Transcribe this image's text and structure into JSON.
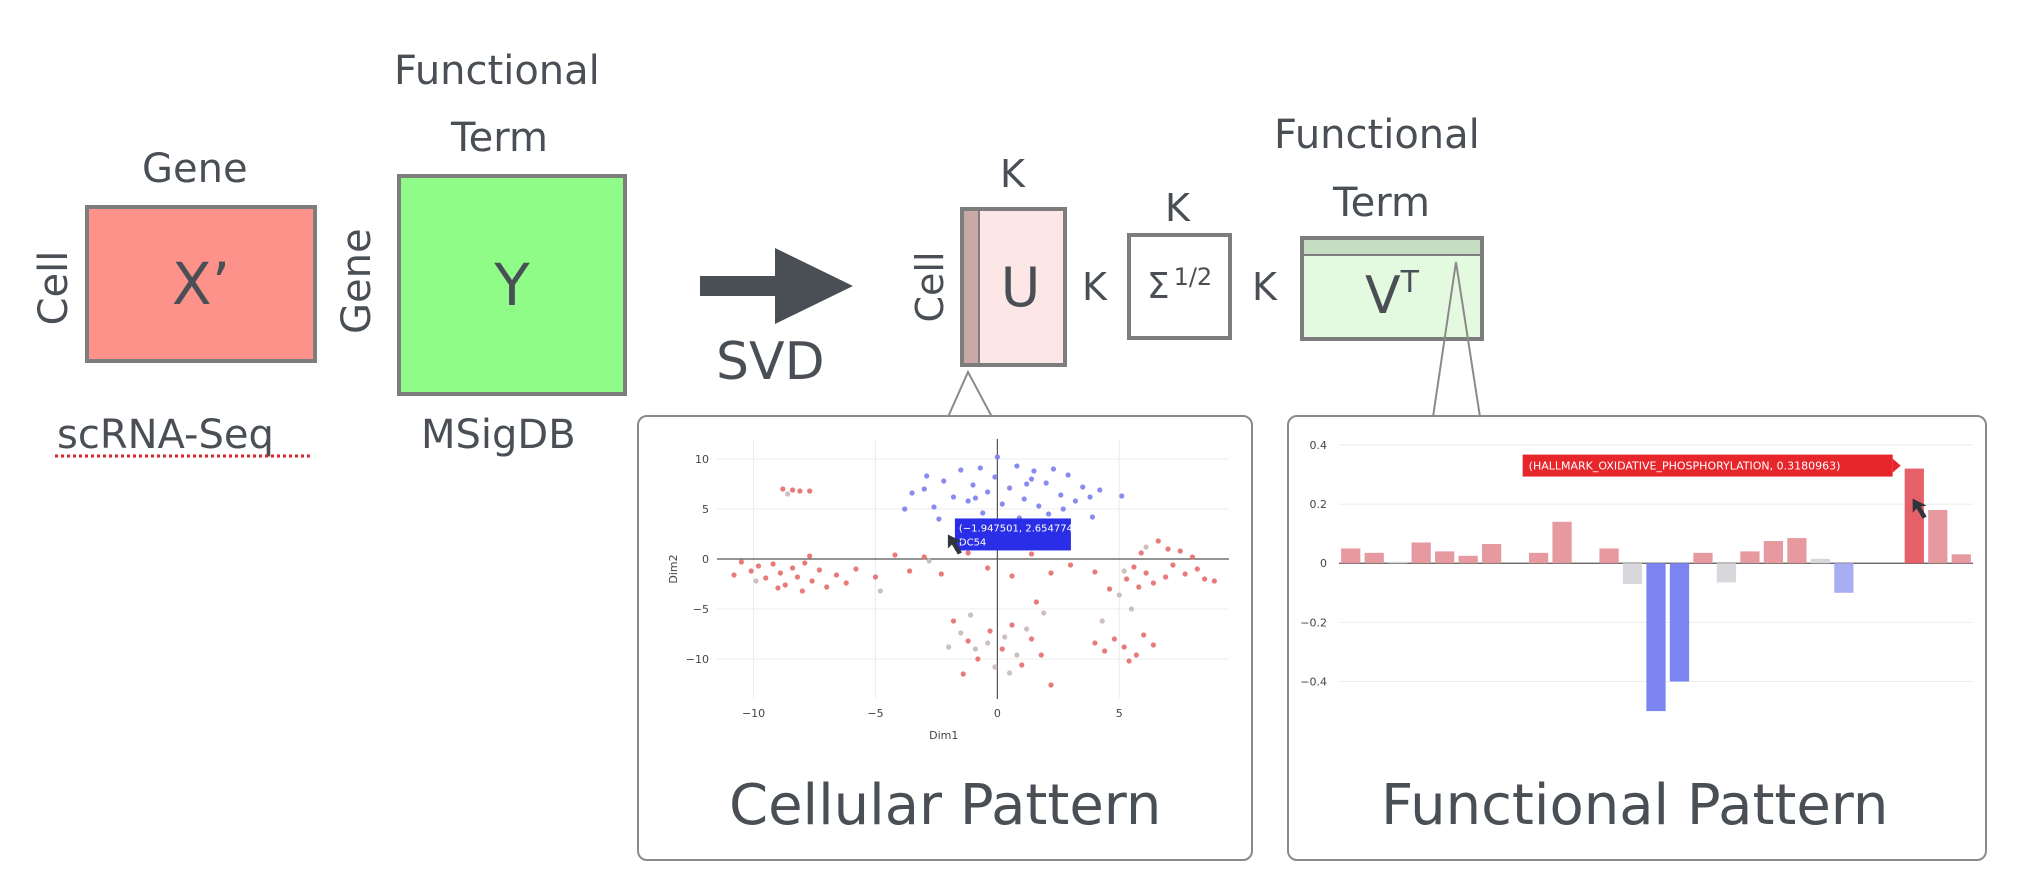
{
  "matrices": {
    "x": {
      "top_label": "Gene",
      "side_label": "Cell",
      "symbol": "X’",
      "bottom_label": "scRNA-Seq",
      "fill": "#fd928a"
    },
    "y": {
      "top_label_1": "Functional",
      "top_label_2": "Term",
      "side_label": "Gene",
      "symbol": "Y",
      "bottom_label": "MSigDB",
      "fill": "#90fc88"
    },
    "u": {
      "top_label": "K",
      "side_label": "Cell",
      "symbol": "U",
      "fill": "#fde6e6"
    },
    "sigma": {
      "top_label": "K",
      "side_label": "K",
      "symbol": "Σ",
      "exponent": "1/2"
    },
    "vt": {
      "top_label_1": "Functional",
      "top_label_2": "Term",
      "side_label": "K",
      "symbol": "V",
      "superscript": "T",
      "fill": "#e4fae0"
    }
  },
  "arrow": {
    "label": "SVD",
    "color": "#4a4f55"
  },
  "panels": {
    "cellular": {
      "caption": "Cellular Pattern"
    },
    "functional": {
      "caption": "Functional Pattern"
    }
  },
  "chart_data": [
    {
      "type": "scatter",
      "xlabel": "Dim1",
      "ylabel": "Dim2",
      "xlim": [
        -11.5,
        9.5
      ],
      "ylim": [
        -14,
        12
      ],
      "xticks": [
        -10,
        -5,
        0,
        5
      ],
      "yticks": [
        10,
        5,
        0,
        -5,
        -10
      ],
      "tooltip": {
        "text_1": "(−1.947501, 2.654774)",
        "text_2": "DC54",
        "point": [
          -1.947501,
          2.654774
        ],
        "color": "#2a2ee6"
      },
      "colors": {
        "blue": "#7b7ff0",
        "red": "#e76b6b",
        "gray": "#c9b8b8"
      },
      "points": [
        [
          -3.5,
          6.6,
          "b"
        ],
        [
          -3.0,
          7.0,
          "b"
        ],
        [
          -2.6,
          5.2,
          "b"
        ],
        [
          -2.2,
          7.8,
          "b"
        ],
        [
          -1.8,
          6.2,
          "b"
        ],
        [
          -1.5,
          8.9,
          "b"
        ],
        [
          -1.2,
          5.8,
          "b"
        ],
        [
          -1.0,
          7.4,
          "b"
        ],
        [
          -0.7,
          9.1,
          "b"
        ],
        [
          -0.4,
          6.7,
          "b"
        ],
        [
          -0.1,
          8.2,
          "b"
        ],
        [
          0.2,
          5.5,
          "b"
        ],
        [
          0.5,
          7.1,
          "b"
        ],
        [
          0.8,
          9.3,
          "b"
        ],
        [
          1.1,
          6.0,
          "b"
        ],
        [
          1.4,
          8.0,
          "b"
        ],
        [
          1.7,
          5.3,
          "b"
        ],
        [
          2.0,
          7.6,
          "b"
        ],
        [
          2.3,
          9.0,
          "b"
        ],
        [
          2.6,
          6.4,
          "b"
        ],
        [
          2.9,
          8.4,
          "b"
        ],
        [
          3.2,
          5.8,
          "b"
        ],
        [
          3.5,
          7.2,
          "b"
        ],
        [
          3.8,
          6.2,
          "b"
        ],
        [
          4.2,
          6.9,
          "b"
        ],
        [
          5.1,
          6.3,
          "b"
        ],
        [
          -3.8,
          5.0,
          "b"
        ],
        [
          -2.4,
          4.0,
          "b"
        ],
        [
          -0.6,
          4.6,
          "b"
        ],
        [
          0.9,
          4.1,
          "b"
        ],
        [
          2.1,
          4.5,
          "b"
        ],
        [
          3.9,
          4.2,
          "b"
        ],
        [
          -1.6,
          3.5,
          "b"
        ],
        [
          0.4,
          3.2,
          "b"
        ],
        [
          1.5,
          8.8,
          "b"
        ],
        [
          -2.9,
          8.3,
          "b"
        ],
        [
          0.0,
          10.2,
          "b"
        ],
        [
          -0.9,
          6.1,
          "b"
        ],
        [
          1.2,
          7.5,
          "b"
        ],
        [
          2.7,
          5.0,
          "b"
        ],
        [
          -10.5,
          -0.3,
          "r"
        ],
        [
          -10.1,
          -1.2,
          "r"
        ],
        [
          -9.8,
          -0.7,
          "r"
        ],
        [
          -9.5,
          -1.9,
          "r"
        ],
        [
          -9.2,
          -0.5,
          "r"
        ],
        [
          -8.9,
          -1.4,
          "r"
        ],
        [
          -8.7,
          -2.6,
          "r"
        ],
        [
          -8.4,
          -0.9,
          "r"
        ],
        [
          -8.2,
          -1.8,
          "r"
        ],
        [
          -7.9,
          -0.4,
          "r"
        ],
        [
          -7.6,
          -2.2,
          "r"
        ],
        [
          -7.3,
          -1.1,
          "r"
        ],
        [
          -7.0,
          -2.8,
          "r"
        ],
        [
          -6.6,
          -1.6,
          "r"
        ],
        [
          -6.2,
          -2.4,
          "r"
        ],
        [
          -5.8,
          -1.0,
          "r"
        ],
        [
          -9.0,
          -2.9,
          "r"
        ],
        [
          -8.0,
          -3.2,
          "r"
        ],
        [
          -10.8,
          -1.6,
          "r"
        ],
        [
          -7.7,
          0.3,
          "r"
        ],
        [
          -5.0,
          -1.8,
          "r"
        ],
        [
          -4.2,
          0.4,
          "r"
        ],
        [
          -3.6,
          -1.2,
          "r"
        ],
        [
          -3.0,
          0.2,
          "r"
        ],
        [
          -2.3,
          -1.5,
          "r"
        ],
        [
          -1.2,
          0.6,
          "r"
        ],
        [
          -0.4,
          -0.9,
          "r"
        ],
        [
          0.6,
          -1.7,
          "r"
        ],
        [
          1.4,
          0.5,
          "r"
        ],
        [
          2.2,
          -1.4,
          "r"
        ],
        [
          3.0,
          -0.6,
          "r"
        ],
        [
          4.0,
          -1.3,
          "r"
        ],
        [
          -8.8,
          7.0,
          "r"
        ],
        [
          -8.4,
          6.9,
          "r"
        ],
        [
          -8.1,
          6.8,
          "r"
        ],
        [
          -7.7,
          6.8,
          "r"
        ],
        [
          6.6,
          1.8,
          "r"
        ],
        [
          7.0,
          1.0,
          "r"
        ],
        [
          7.2,
          -0.6,
          "r"
        ],
        [
          7.5,
          0.8,
          "r"
        ],
        [
          7.7,
          -1.5,
          "r"
        ],
        [
          8.0,
          0.2,
          "r"
        ],
        [
          8.2,
          -1.0,
          "r"
        ],
        [
          6.4,
          -2.4,
          "r"
        ],
        [
          6.9,
          -1.8,
          "r"
        ],
        [
          5.6,
          -0.8,
          "r"
        ],
        [
          5.9,
          0.6,
          "r"
        ],
        [
          6.1,
          -1.4,
          "r"
        ],
        [
          5.3,
          -2.0,
          "r"
        ],
        [
          5.8,
          -2.8,
          "r"
        ],
        [
          8.5,
          -2.0,
          "r"
        ],
        [
          4.6,
          -3.0,
          "r"
        ],
        [
          8.9,
          -2.2,
          "r"
        ],
        [
          -1.8,
          -6.2,
          "r"
        ],
        [
          -1.2,
          -8.2,
          "r"
        ],
        [
          -0.8,
          -10.0,
          "r"
        ],
        [
          -0.3,
          -7.2,
          "r"
        ],
        [
          0.2,
          -9.0,
          "r"
        ],
        [
          0.6,
          -6.6,
          "r"
        ],
        [
          1.0,
          -10.6,
          "r"
        ],
        [
          1.4,
          -8.0,
          "r"
        ],
        [
          1.8,
          -9.6,
          "r"
        ],
        [
          2.2,
          -12.6,
          "r"
        ],
        [
          1.6,
          -4.3,
          "r"
        ],
        [
          -1.4,
          -11.5,
          "r"
        ],
        [
          4.0,
          -8.4,
          "r"
        ],
        [
          4.4,
          -9.2,
          "r"
        ],
        [
          4.8,
          -8.0,
          "r"
        ],
        [
          5.2,
          -8.8,
          "r"
        ],
        [
          5.7,
          -9.6,
          "r"
        ],
        [
          6.0,
          -7.6,
          "r"
        ],
        [
          5.4,
          -10.2,
          "r"
        ],
        [
          6.4,
          -8.6,
          "r"
        ],
        [
          -1.5,
          -7.4,
          "g"
        ],
        [
          -0.9,
          -9.0,
          "g"
        ],
        [
          -0.4,
          -8.4,
          "g"
        ],
        [
          0.3,
          -7.8,
          "g"
        ],
        [
          0.8,
          -9.6,
          "g"
        ],
        [
          1.2,
          -7.0,
          "g"
        ],
        [
          -0.1,
          -10.8,
          "g"
        ],
        [
          0.5,
          -11.4,
          "g"
        ],
        [
          -2.0,
          -8.8,
          "g"
        ],
        [
          5.0,
          -3.6,
          "g"
        ],
        [
          5.5,
          -5.0,
          "g"
        ],
        [
          4.3,
          -6.2,
          "g"
        ],
        [
          5.2,
          -1.2,
          "g"
        ],
        [
          6.1,
          1.2,
          "g"
        ],
        [
          -2.8,
          -0.2,
          "g"
        ],
        [
          -4.8,
          -3.2,
          "g"
        ],
        [
          -8.6,
          6.5,
          "g"
        ],
        [
          -9.9,
          -2.2,
          "g"
        ],
        [
          1.9,
          -5.4,
          "g"
        ],
        [
          -1.1,
          -5.6,
          "g"
        ]
      ]
    },
    {
      "type": "bar",
      "ylim": [
        -0.52,
        0.42
      ],
      "yticks": [
        0.4,
        0.2,
        0,
        -0.2,
        -0.4
      ],
      "tooltip": {
        "text": "(HALLMARK_OXIDATIVE_PHOSPHORYLATION, 0.3180963)",
        "index": 29,
        "color": "#e7262c"
      },
      "colors": {
        "pos": "#e69aa0",
        "neg": "#7b84f0",
        "neutral": "#d7d7dc"
      },
      "values": [
        0.05,
        0.035,
        0.005,
        0.07,
        0.04,
        0.025,
        0.065,
        0,
        0.035,
        0.14,
        0,
        0.05,
        -0.07,
        -0.5,
        -0.4,
        0.035,
        -0.065,
        0.04,
        0.075,
        0.085,
        0.015,
        -0.1,
        0,
        0,
        0.32,
        0.18,
        0.03
      ],
      "bar_colors": [
        "p",
        "p",
        "n0",
        "p",
        "p",
        "p",
        "p",
        "n0",
        "p",
        "p",
        "n0",
        "p",
        "g",
        "b",
        "b",
        "p",
        "g",
        "p",
        "p",
        "p",
        "n0",
        "lb",
        "n0",
        "n0",
        "r",
        "p",
        "p"
      ]
    }
  ]
}
